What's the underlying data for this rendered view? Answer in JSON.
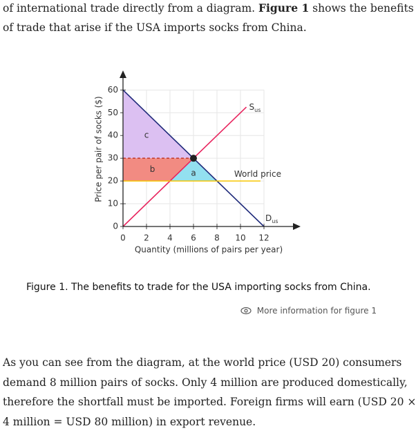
{
  "intro": [
    [
      {
        "text": "of international trade directly from a diagram. "
      },
      {
        "text": "Figure 1",
        "bold": true
      },
      {
        "text": " shows the benefits"
      }
    ],
    [
      {
        "text": "of trade that arise if the USA imports socks from China."
      }
    ]
  ],
  "chart_data": {
    "type": "line",
    "x_label": "Quantity (millions of pairs per year)",
    "y_label": "Price per pair of socks ($)",
    "xlim": [
      0,
      15
    ],
    "ylim": [
      0,
      68
    ],
    "xticks": [
      0,
      2,
      4,
      6,
      8,
      10,
      12
    ],
    "yticks": [
      0,
      10,
      20,
      30,
      40,
      50,
      60
    ],
    "grid": true,
    "areas": [
      {
        "name": "c",
        "color": "#dcc0f2",
        "x": [
          0,
          0,
          6
        ],
        "values": [
          60,
          30,
          30
        ]
      },
      {
        "name": "b",
        "color": "#f28b82",
        "x": [
          0,
          6,
          4,
          0
        ],
        "values": [
          30,
          30,
          20,
          20
        ]
      },
      {
        "name": "a",
        "color": "#93e0f0",
        "x": [
          6,
          4,
          8
        ],
        "values": [
          30,
          20,
          20
        ]
      }
    ],
    "series": [
      {
        "name": "D",
        "subscript": "us",
        "color": "#1f2a7a",
        "x": [
          0,
          12
        ],
        "values": [
          60,
          0
        ]
      },
      {
        "name": "S",
        "subscript": "us",
        "color": "#e8245e",
        "x": [
          0,
          10.5
        ],
        "values": [
          0,
          52.5
        ]
      },
      {
        "name": "World price",
        "color": "#f7c600",
        "x": [
          0,
          11.7
        ],
        "values": [
          20,
          20
        ]
      }
    ],
    "reference": {
      "color": "#c0392b",
      "x": [
        0,
        6
      ],
      "values": [
        30,
        30
      ]
    },
    "point": {
      "x": 6,
      "y": 30,
      "color": "#222222"
    }
  },
  "caption": "Figure 1. The benefits to trade for the USA importing socks from China.",
  "more_info": "More information for figure 1",
  "body": [
    "As you can see from the diagram, at the world price (USD 20) consumers",
    "demand 8 million pairs of socks. Only 4 million are produced domestically,",
    "therefore the shortfall must be imported. Foreign firms will earn (USD 20 ×",
    "4 million = USD 80 million) in export revenue."
  ]
}
